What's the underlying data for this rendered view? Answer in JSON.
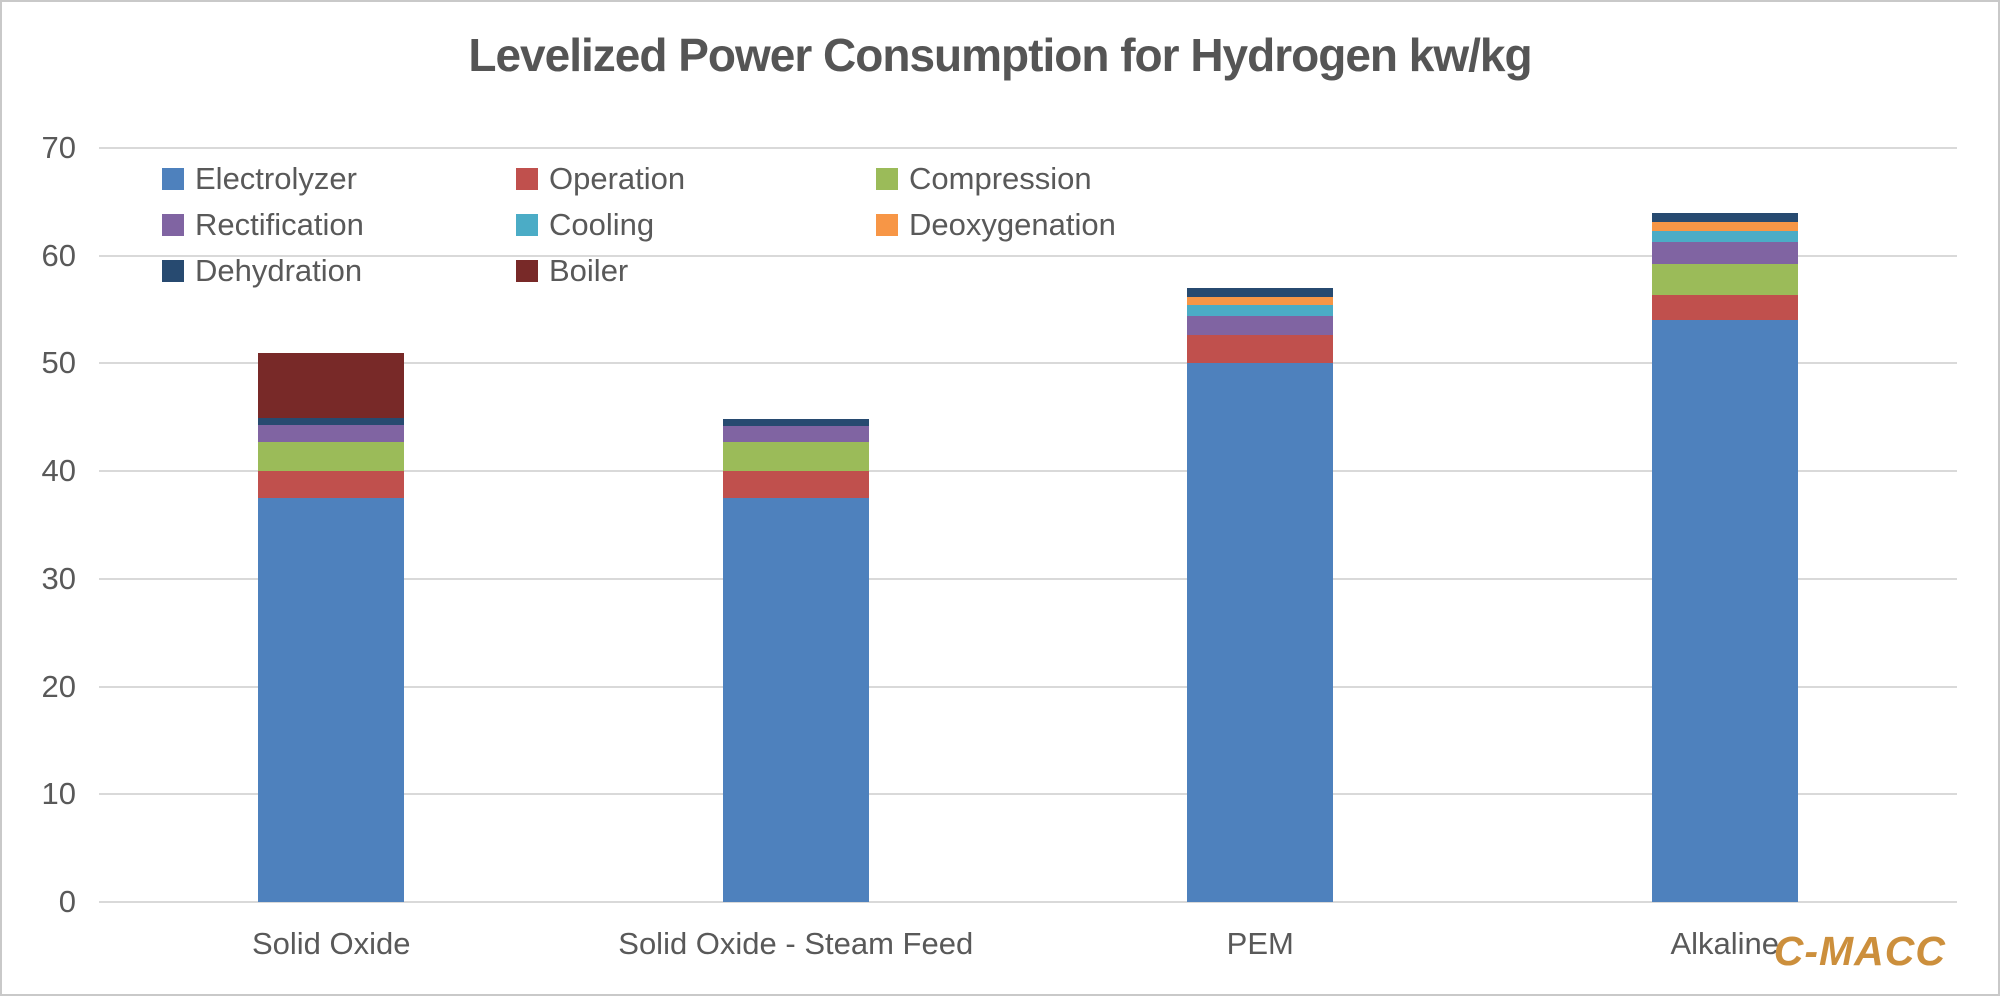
{
  "title": "Levelized Power Consumption for Hydrogen kw/kg",
  "branding": {
    "logo_text": "C-MACC",
    "logo_color": "#cc8f3c"
  },
  "style_colors": {
    "text": "#595959",
    "gridline": "#d9d9d9",
    "frame_border": "#c9c9c9",
    "background": "#ffffff"
  },
  "chart_data": {
    "type": "bar",
    "stacked": true,
    "title": "Levelized Power Consumption for Hydrogen kw/kg",
    "xlabel": "",
    "ylabel": "",
    "categories": [
      "Solid Oxide",
      "Solid Oxide - Steam Feed",
      "PEM",
      "Alkaline"
    ],
    "series": [
      {
        "name": "Electrolyzer",
        "color": "#4e81bd",
        "values": [
          37.5,
          37.5,
          50.0,
          54.0
        ]
      },
      {
        "name": "Operation",
        "color": "#c0504d",
        "values": [
          2.5,
          2.5,
          2.6,
          2.4
        ]
      },
      {
        "name": "Compression",
        "color": "#9bbb59",
        "values": [
          2.7,
          2.7,
          0,
          2.8
        ]
      },
      {
        "name": "Rectification",
        "color": "#8064a2",
        "values": [
          1.6,
          1.5,
          1.8,
          2.1
        ]
      },
      {
        "name": "Cooling",
        "color": "#4bacc6",
        "values": [
          0,
          0,
          1.0,
          1.0
        ]
      },
      {
        "name": "Deoxygenation",
        "color": "#f79646",
        "values": [
          0,
          0,
          0.8,
          0.8
        ]
      },
      {
        "name": "Dehydration",
        "color": "#274a70",
        "values": [
          0.6,
          0.6,
          0.8,
          0.9
        ]
      },
      {
        "name": "Boiler",
        "color": "#782928",
        "values": [
          6.1,
          0,
          0,
          0
        ]
      }
    ],
    "totals": [
      51.0,
      44.8,
      57.0,
      64.0
    ],
    "ylim": [
      0,
      70
    ],
    "yticks": [
      0,
      10,
      20,
      30,
      40,
      50,
      60,
      70
    ],
    "grid": true,
    "legend_position": "inside-top-left",
    "legend_columns": 3
  }
}
